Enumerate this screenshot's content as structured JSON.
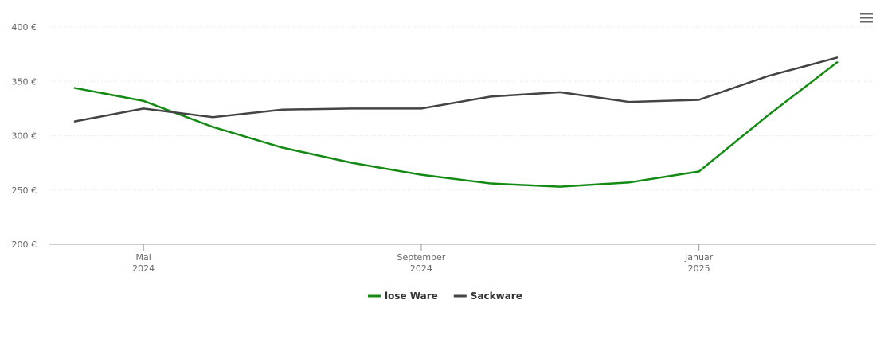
{
  "chart_data": {
    "type": "line",
    "x": [
      "2024-04",
      "2024-05",
      "2024-06",
      "2024-07",
      "2024-08",
      "2024-09",
      "2024-10",
      "2024-11",
      "2024-12",
      "2025-01",
      "2025-02",
      "2025-03"
    ],
    "series": [
      {
        "name": "lose Ware",
        "color": "#138a13",
        "values": [
          344,
          332,
          308,
          289,
          275,
          264,
          256,
          253,
          257,
          267,
          319,
          368
        ]
      },
      {
        "name": "Sackware",
        "color": "#444444",
        "values": [
          313,
          325,
          317,
          324,
          325,
          325,
          336,
          340,
          331,
          333,
          355,
          372
        ]
      }
    ],
    "xlim": [
      "2024-04",
      "2025-03"
    ],
    "xticks": [
      {
        "value": "2024-05",
        "label": "Mai 2024"
      },
      {
        "value": "2024-09",
        "label": "September 2024"
      },
      {
        "value": "2025-01",
        "label": "Januar 2025"
      }
    ],
    "ylim": [
      200,
      400
    ],
    "yticks": [
      {
        "value": 200,
        "label": "200 €"
      },
      {
        "value": 250,
        "label": "250 €"
      },
      {
        "value": 300,
        "label": "300 €"
      },
      {
        "value": 350,
        "label": "350 €"
      },
      {
        "value": 400,
        "label": "400 €"
      }
    ],
    "grid": true,
    "legend": "bottom"
  }
}
